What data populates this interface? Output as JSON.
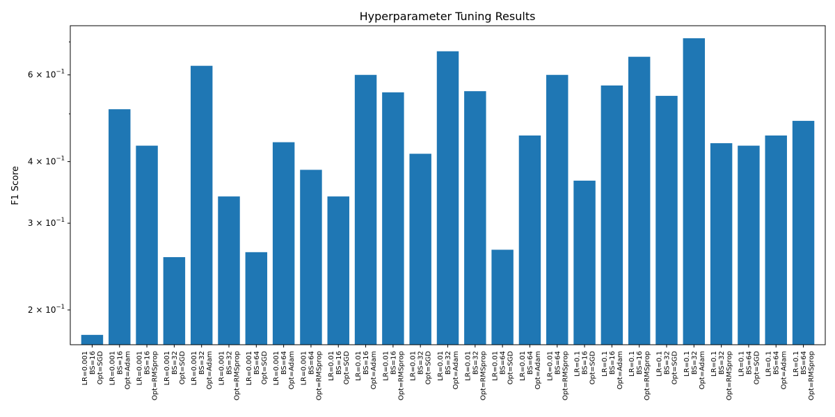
{
  "chart_data": {
    "type": "bar",
    "title": "Hyperparameter Tuning Results",
    "xlabel": "",
    "ylabel": "F1 Score",
    "yscale": "log",
    "ylim": [
      0.17,
      0.755
    ],
    "bar_color": "#1f77b4",
    "grid": false,
    "yticks": [
      {
        "value": 0.2,
        "mantissa": "2",
        "exp": "−1"
      },
      {
        "value": 0.3,
        "mantissa": "3",
        "exp": "−1"
      },
      {
        "value": 0.4,
        "mantissa": "4",
        "exp": "−1"
      },
      {
        "value": 0.6,
        "mantissa": "6",
        "exp": "−1"
      }
    ],
    "minor_yticks": [
      0.5,
      0.7
    ],
    "categories": [
      [
        "LR=0.001",
        "BS=16",
        "Opt=SGD"
      ],
      [
        "LR=0.001",
        "BS=16",
        "Opt=Adam"
      ],
      [
        "LR=0.001",
        "BS=16",
        "Opt=RMSprop"
      ],
      [
        "LR=0.001",
        "BS=32",
        "Opt=SGD"
      ],
      [
        "LR=0.001",
        "BS=32",
        "Opt=Adam"
      ],
      [
        "LR=0.001",
        "BS=32",
        "Opt=RMSprop"
      ],
      [
        "LR=0.001",
        "BS=64",
        "Opt=SGD"
      ],
      [
        "LR=0.001",
        "BS=64",
        "Opt=Adam"
      ],
      [
        "LR=0.001",
        "BS=64",
        "Opt=RMSprop"
      ],
      [
        "LR=0.01",
        "BS=16",
        "Opt=SGD"
      ],
      [
        "LR=0.01",
        "BS=16",
        "Opt=Adam"
      ],
      [
        "LR=0.01",
        "BS=16",
        "Opt=RMSprop"
      ],
      [
        "LR=0.01",
        "BS=32",
        "Opt=SGD"
      ],
      [
        "LR=0.01",
        "BS=32",
        "Opt=Adam"
      ],
      [
        "LR=0.01",
        "BS=32",
        "Opt=RMSprop"
      ],
      [
        "LR=0.01",
        "BS=64",
        "Opt=SGD"
      ],
      [
        "LR=0.01",
        "BS=64",
        "Opt=Adam"
      ],
      [
        "LR=0.01",
        "BS=64",
        "Opt=RMSprop"
      ],
      [
        "LR=0.1",
        "BS=16",
        "Opt=SGD"
      ],
      [
        "LR=0.1",
        "BS=16",
        "Opt=Adam"
      ],
      [
        "LR=0.1",
        "BS=16",
        "Opt=RMSprop"
      ],
      [
        "LR=0.1",
        "BS=32",
        "Opt=SGD"
      ],
      [
        "LR=0.1",
        "BS=32",
        "Opt=Adam"
      ],
      [
        "LR=0.1",
        "BS=32",
        "Opt=RMSprop"
      ],
      [
        "LR=0.1",
        "BS=64",
        "Opt=SGD"
      ],
      [
        "LR=0.1",
        "BS=64",
        "Opt=Adam"
      ],
      [
        "LR=0.1",
        "BS=64",
        "Opt=RMSprop"
      ]
    ],
    "values": [
      0.178,
      0.511,
      0.431,
      0.256,
      0.626,
      0.34,
      0.262,
      0.438,
      0.385,
      0.34,
      0.6,
      0.553,
      0.415,
      0.67,
      0.556,
      0.265,
      0.452,
      0.6,
      0.366,
      0.571,
      0.653,
      0.544,
      0.712,
      0.436,
      0.431,
      0.452,
      0.484
    ]
  }
}
